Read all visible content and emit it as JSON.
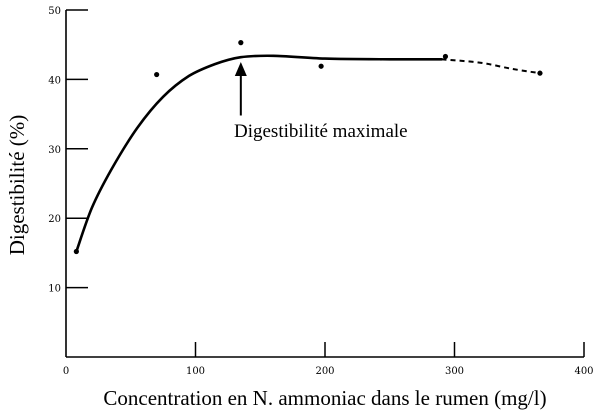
{
  "chart_data": {
    "type": "line",
    "title": "",
    "xlabel": "Concentration en N. ammoniac dans le rumen (mg/l)",
    "ylabel": "Digestibilité (%)",
    "xlim": [
      0,
      400
    ],
    "ylim": [
      0,
      50
    ],
    "x_ticks": [
      0,
      100,
      200,
      300,
      400
    ],
    "y_ticks": [
      10,
      20,
      30,
      40,
      50
    ],
    "grid": false,
    "legend": "none",
    "points": [
      {
        "x": 8,
        "y": 15.2
      },
      {
        "x": 70,
        "y": 40.7
      },
      {
        "x": 135,
        "y": 45.3
      },
      {
        "x": 197,
        "y": 41.9
      },
      {
        "x": 293,
        "y": 43.3
      },
      {
        "x": 366,
        "y": 40.9
      }
    ],
    "curve_solid": [
      {
        "x": 8,
        "y": 15.2
      },
      {
        "x": 20,
        "y": 21.5
      },
      {
        "x": 35,
        "y": 27.0
      },
      {
        "x": 55,
        "y": 33.0
      },
      {
        "x": 75,
        "y": 37.5
      },
      {
        "x": 95,
        "y": 40.5
      },
      {
        "x": 115,
        "y": 42.2
      },
      {
        "x": 135,
        "y": 43.2
      },
      {
        "x": 160,
        "y": 43.4
      },
      {
        "x": 200,
        "y": 43.0
      },
      {
        "x": 250,
        "y": 42.9
      },
      {
        "x": 290,
        "y": 42.9
      }
    ],
    "curve_dashed": [
      {
        "x": 290,
        "y": 42.9
      },
      {
        "x": 320,
        "y": 42.4
      },
      {
        "x": 345,
        "y": 41.5
      },
      {
        "x": 366,
        "y": 40.9
      }
    ],
    "annotation": {
      "text": "Digestibilité maximale",
      "x": 135,
      "arrow_from_y": 34.8,
      "arrow_to_y": 42.5
    },
    "colors": {
      "line": "#000000",
      "background": "#ffffff"
    }
  }
}
